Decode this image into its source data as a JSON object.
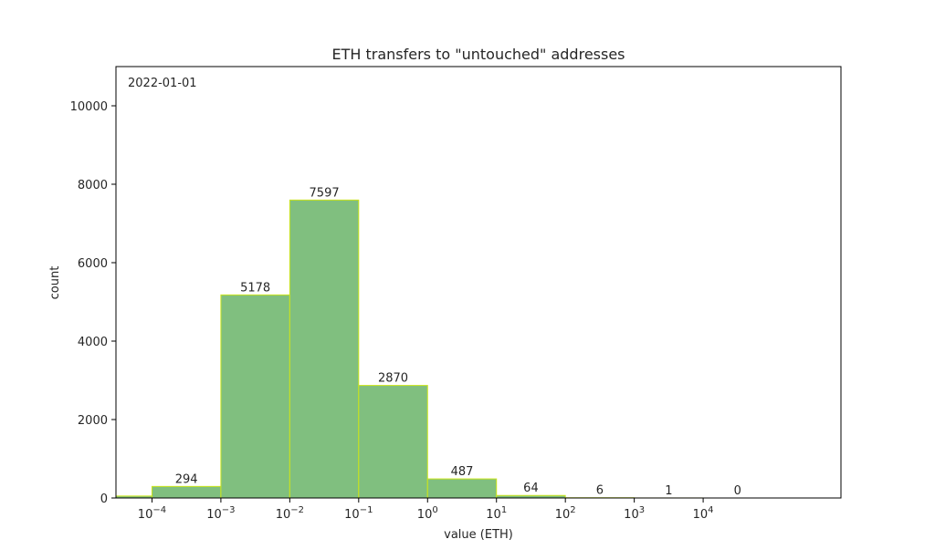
{
  "chart_data": {
    "type": "bar",
    "title": "ETH transfers to \"untouched\" addresses",
    "xlabel": "value (ETH)",
    "ylabel": "count",
    "annotation": "2022-01-01",
    "x_scale": "log",
    "xlim": [
      3e-05,
      1000000
    ],
    "ylim": [
      0,
      11000
    ],
    "x_ticks": [
      {
        "value": 0.0001,
        "base": "10",
        "exp": "−4"
      },
      {
        "value": 0.001,
        "base": "10",
        "exp": "−3"
      },
      {
        "value": 0.01,
        "base": "10",
        "exp": "−2"
      },
      {
        "value": 0.1,
        "base": "10",
        "exp": "−1"
      },
      {
        "value": 1,
        "base": "10",
        "exp": "0"
      },
      {
        "value": 10,
        "base": "10",
        "exp": "1"
      },
      {
        "value": 100,
        "base": "10",
        "exp": "2"
      },
      {
        "value": 1000,
        "base": "10",
        "exp": "3"
      },
      {
        "value": 10000,
        "base": "10",
        "exp": "4"
      }
    ],
    "y_ticks": [
      0,
      2000,
      4000,
      6000,
      8000,
      10000
    ],
    "bins": [
      {
        "x0": 3e-05,
        "x1": 0.0001,
        "value": 50,
        "label": ""
      },
      {
        "x0": 0.0001,
        "x1": 0.001,
        "value": 294,
        "label": "294"
      },
      {
        "x0": 0.001,
        "x1": 0.01,
        "value": 5178,
        "label": "5178"
      },
      {
        "x0": 0.01,
        "x1": 0.1,
        "value": 7597,
        "label": "7597"
      },
      {
        "x0": 0.1,
        "x1": 1,
        "value": 2870,
        "label": "2870"
      },
      {
        "x0": 1,
        "x1": 10,
        "value": 487,
        "label": "487"
      },
      {
        "x0": 10,
        "x1": 100,
        "value": 64,
        "label": "64"
      },
      {
        "x0": 100,
        "x1": 1000,
        "value": 6,
        "label": "6"
      },
      {
        "x0": 1000,
        "x1": 10000,
        "value": 1,
        "label": "1"
      },
      {
        "x0": 10000,
        "x1": 100000,
        "value": 0,
        "label": "0"
      }
    ],
    "grid": false,
    "legend": "none",
    "colors": {
      "bar_fill": "#80bf7f",
      "bar_edge": "#cce51a"
    }
  }
}
